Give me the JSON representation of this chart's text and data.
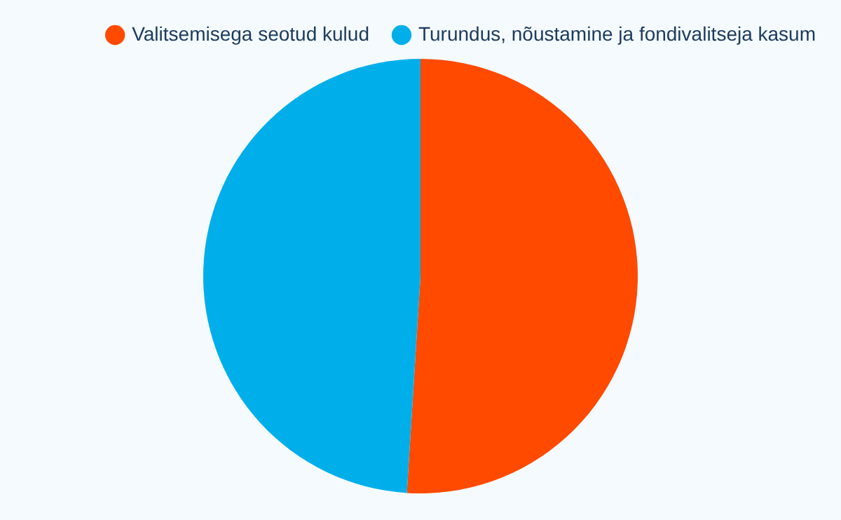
{
  "chart_data": {
    "type": "pie",
    "categories": [
      "Valitsemisega seotud kulud",
      "Turundus, nõustamine ja fondivalitseja kasum"
    ],
    "values": [
      51,
      49
    ],
    "colors": [
      "#ff4a00",
      "#00aeea"
    ],
    "legend": "top"
  }
}
